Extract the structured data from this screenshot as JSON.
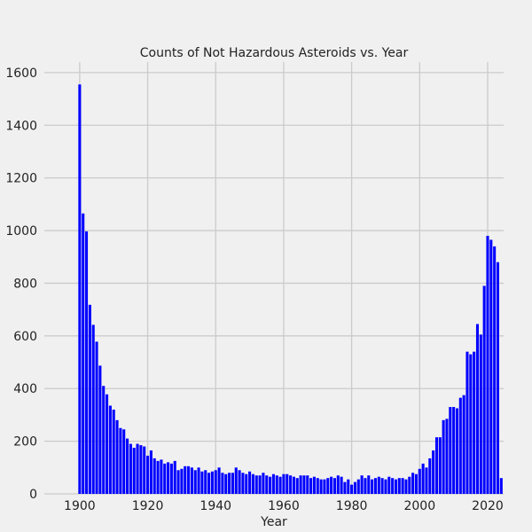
{
  "chart_data": {
    "type": "bar",
    "title": "Counts of Not Hazardous Asteroids vs. Year",
    "x_label": "Year",
    "color": "#0000ff",
    "grid": true,
    "xlim": [
      1889.6,
      2024.7
    ],
    "ylim": [
      0,
      1640
    ],
    "xticks": [
      1900,
      1920,
      1940,
      1960,
      1980,
      2000,
      2020
    ],
    "yticks": [
      0,
      200,
      400,
      600,
      800,
      1000,
      1200,
      1400,
      1600
    ],
    "x": [
      1900,
      1901,
      1902,
      1903,
      1904,
      1905,
      1906,
      1907,
      1908,
      1909,
      1910,
      1911,
      1912,
      1913,
      1914,
      1915,
      1916,
      1917,
      1918,
      1919,
      1920,
      1921,
      1922,
      1923,
      1924,
      1925,
      1926,
      1927,
      1928,
      1929,
      1930,
      1931,
      1932,
      1933,
      1934,
      1935,
      1936,
      1937,
      1938,
      1939,
      1940,
      1941,
      1942,
      1943,
      1944,
      1945,
      1946,
      1947,
      1948,
      1949,
      1950,
      1951,
      1952,
      1953,
      1954,
      1955,
      1956,
      1957,
      1958,
      1959,
      1960,
      1961,
      1962,
      1963,
      1964,
      1965,
      1966,
      1967,
      1968,
      1969,
      1970,
      1971,
      1972,
      1973,
      1974,
      1975,
      1976,
      1977,
      1978,
      1979,
      1980,
      1981,
      1982,
      1983,
      1984,
      1985,
      1986,
      1987,
      1988,
      1989,
      1990,
      1991,
      1992,
      1993,
      1994,
      1995,
      1996,
      1997,
      1998,
      1999,
      2000,
      2001,
      2002,
      2003,
      2004,
      2005,
      2006,
      2007,
      2008,
      2009,
      2010,
      2011,
      2012,
      2013,
      2014,
      2015,
      2016,
      2017,
      2018,
      2019,
      2020,
      2021,
      2022,
      2023,
      2024
    ],
    "values": [
      1555,
      1065,
      997,
      718,
      642,
      578,
      487,
      410,
      378,
      335,
      320,
      280,
      250,
      245,
      210,
      190,
      175,
      190,
      185,
      180,
      145,
      165,
      135,
      125,
      130,
      115,
      120,
      115,
      125,
      90,
      95,
      105,
      105,
      100,
      90,
      100,
      85,
      90,
      80,
      85,
      90,
      100,
      80,
      75,
      80,
      80,
      100,
      90,
      80,
      75,
      85,
      75,
      70,
      70,
      80,
      70,
      65,
      75,
      70,
      65,
      75,
      75,
      70,
      65,
      60,
      70,
      70,
      70,
      60,
      65,
      60,
      55,
      55,
      60,
      65,
      60,
      70,
      65,
      45,
      55,
      35,
      45,
      55,
      70,
      60,
      70,
      55,
      60,
      65,
      60,
      55,
      65,
      60,
      55,
      60,
      60,
      55,
      65,
      80,
      75,
      95,
      115,
      100,
      135,
      165,
      215,
      215,
      280,
      285,
      330,
      330,
      325,
      365,
      375,
      540,
      530,
      540,
      645,
      605,
      790,
      980,
      965,
      940,
      880,
      60
    ]
  }
}
